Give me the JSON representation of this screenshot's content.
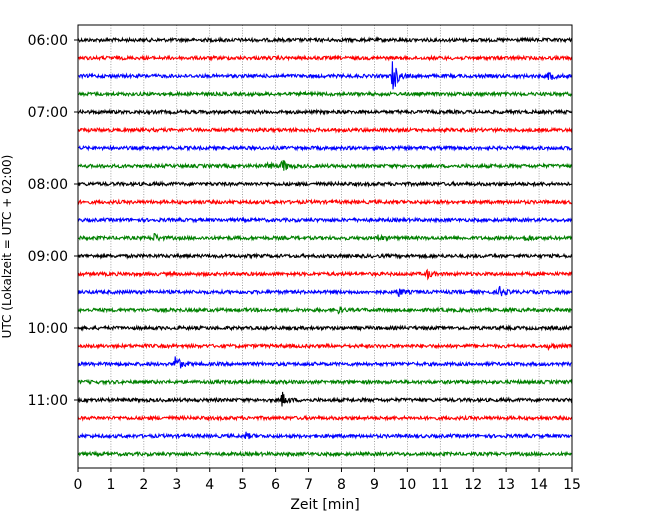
{
  "chart_data": {
    "type": "line",
    "title": "",
    "xlabel": "Zeit  [min]",
    "ylabel": "UTC (Lokalzeit = UTC + 02:00)",
    "xlim": [
      0,
      15
    ],
    "x_ticks": [
      0,
      1,
      2,
      3,
      4,
      5,
      6,
      7,
      8,
      9,
      10,
      11,
      12,
      13,
      14,
      15
    ],
    "x_tick_labels": [
      "0",
      "1",
      "2",
      "3",
      "4",
      "5",
      "6",
      "7",
      "8",
      "9",
      "10",
      "11",
      "12",
      "13",
      "14",
      "15"
    ],
    "y_tick_labels": [
      "06:00",
      "07:00",
      "08:00",
      "09:00",
      "10:00",
      "11:00"
    ],
    "trace_interval_min": 15,
    "grid": "vertical dotted at each minute",
    "colors": [
      "#000000",
      "#ff0000",
      "#0000ff",
      "#008000"
    ],
    "traces": [
      {
        "start": "06:00",
        "events": []
      },
      {
        "start": "06:15",
        "events": []
      },
      {
        "start": "06:30",
        "events": [
          {
            "t": 9.55,
            "amp": 1.9
          },
          {
            "t": 14.3,
            "amp": 0.5
          }
        ]
      },
      {
        "start": "06:45",
        "events": []
      },
      {
        "start": "07:00",
        "events": []
      },
      {
        "start": "07:15",
        "events": []
      },
      {
        "start": "07:30",
        "events": []
      },
      {
        "start": "07:45",
        "events": [
          {
            "t": 6.2,
            "amp": 0.75
          },
          {
            "t": 5.75,
            "amp": 0.35
          }
        ]
      },
      {
        "start": "08:00",
        "events": []
      },
      {
        "start": "08:15",
        "events": []
      },
      {
        "start": "08:30",
        "events": []
      },
      {
        "start": "08:45",
        "events": [
          {
            "t": 2.3,
            "amp": 0.45
          },
          {
            "t": 9.1,
            "amp": 0.3
          },
          {
            "t": 13.6,
            "amp": 0.3
          }
        ]
      },
      {
        "start": "09:00",
        "events": []
      },
      {
        "start": "09:15",
        "events": [
          {
            "t": 10.6,
            "amp": 0.45
          }
        ]
      },
      {
        "start": "09:30",
        "events": [
          {
            "t": 9.7,
            "amp": 0.5
          },
          {
            "t": 12.8,
            "amp": 0.55
          }
        ]
      },
      {
        "start": "09:45",
        "events": [
          {
            "t": 7.9,
            "amp": 0.3
          }
        ]
      },
      {
        "start": "10:00",
        "events": []
      },
      {
        "start": "10:15",
        "events": [
          {
            "t": 14.3,
            "amp": 0.3
          }
        ]
      },
      {
        "start": "10:30",
        "events": [
          {
            "t": 2.95,
            "amp": 1.1
          }
        ]
      },
      {
        "start": "10:45",
        "events": []
      },
      {
        "start": "11:00",
        "events": [
          {
            "t": 6.2,
            "amp": 0.75
          }
        ]
      },
      {
        "start": "11:15",
        "events": []
      },
      {
        "start": "11:30",
        "events": [
          {
            "t": 5.1,
            "amp": 0.3
          }
        ]
      },
      {
        "start": "11:45",
        "events": []
      }
    ]
  }
}
